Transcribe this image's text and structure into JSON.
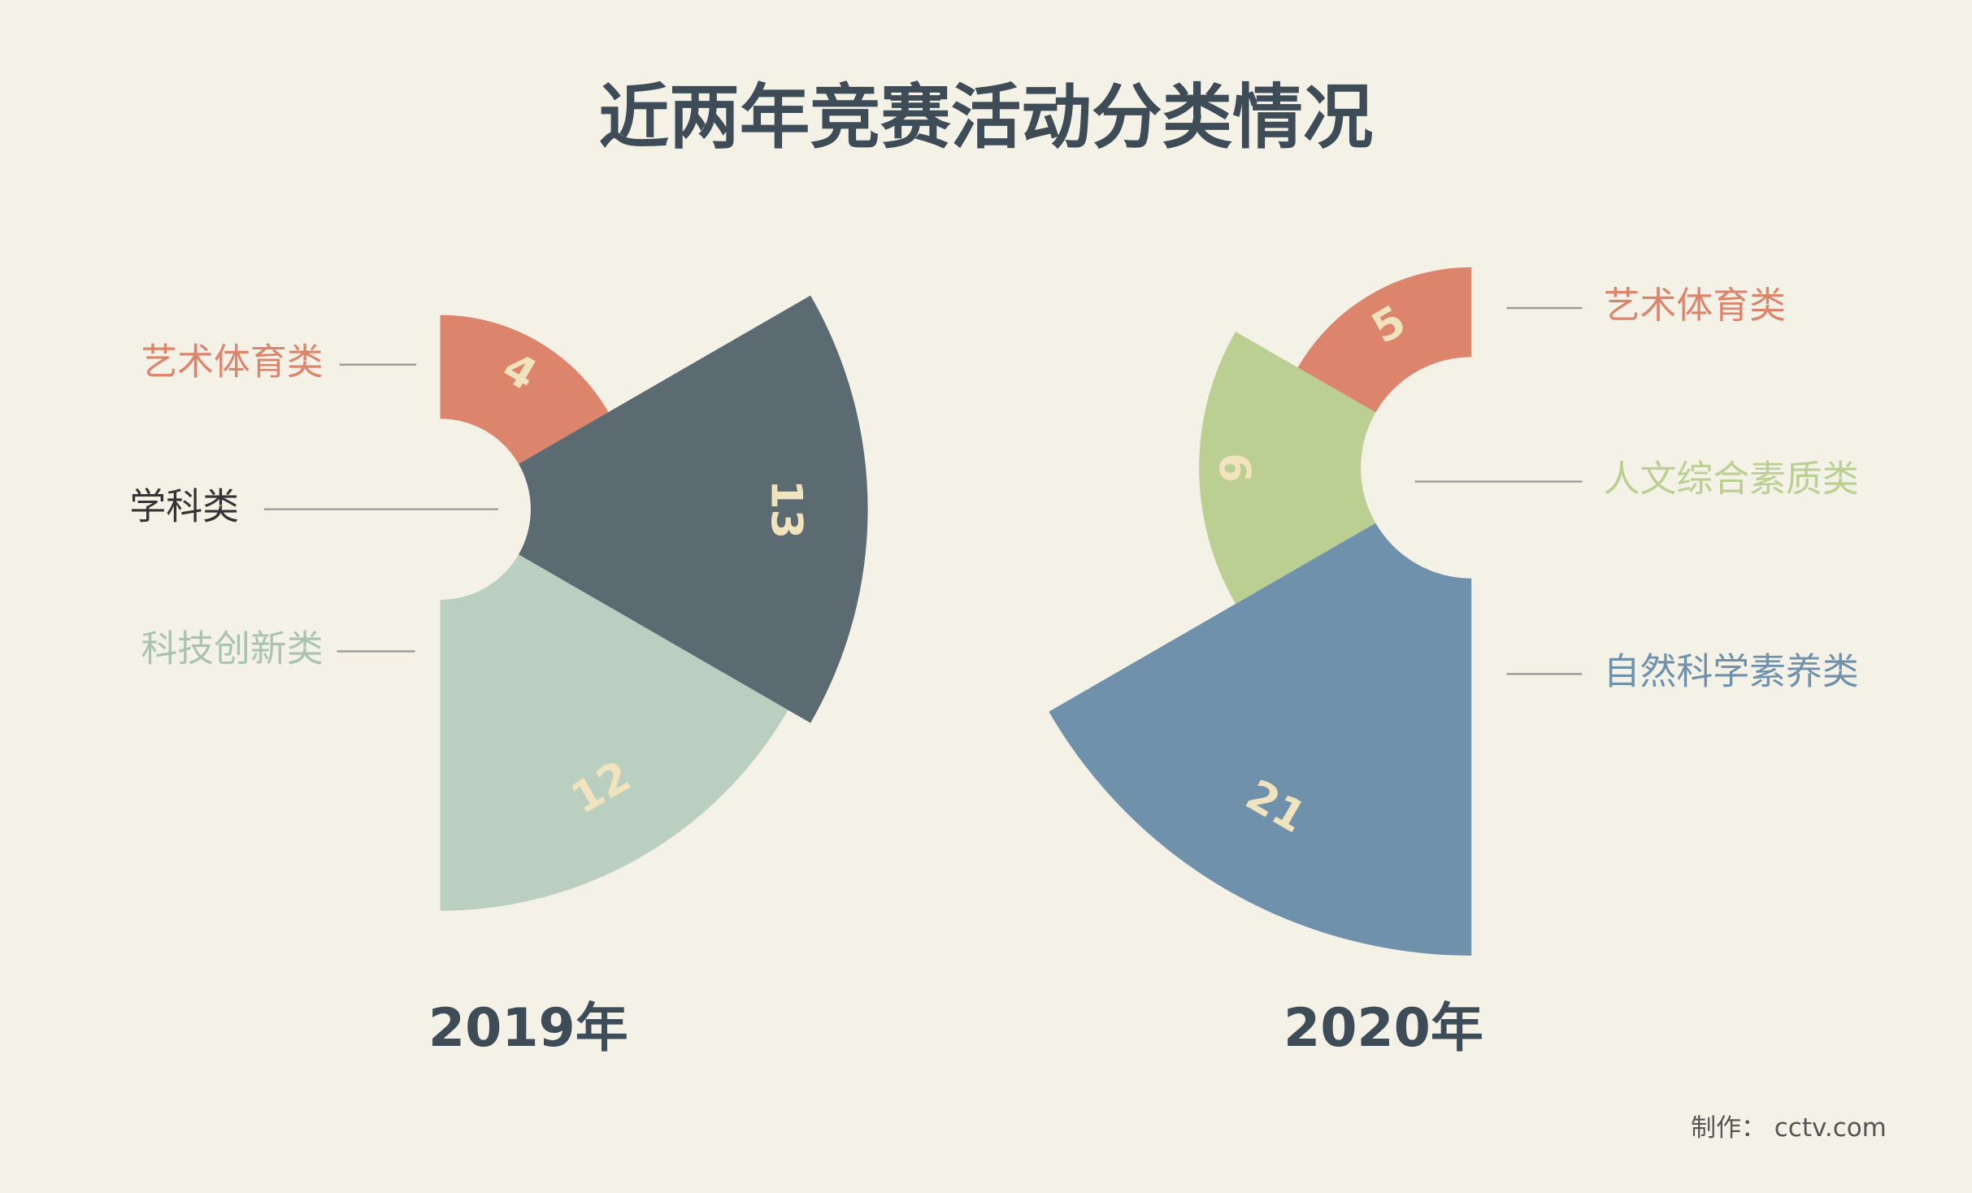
{
  "title": "近两年竞赛活动分类情况",
  "footer": "制作： cctv.com",
  "chart_data": [
    {
      "type": "rose",
      "title": "2019年",
      "categories": [
        "艺术体育类",
        "学科类",
        "科技创新类"
      ],
      "values": [
        4,
        13,
        12
      ],
      "colors": [
        "#dc846c",
        "#5c6a72",
        "#bacfc0"
      ]
    },
    {
      "type": "rose",
      "title": "2020年",
      "categories": [
        "艺术体育类",
        "人文综合素质类",
        "自然科学素养类"
      ],
      "values": [
        5,
        9,
        21
      ],
      "colors": [
        "#dc846c",
        "#bbcf93",
        "#6f91ab"
      ]
    }
  ]
}
